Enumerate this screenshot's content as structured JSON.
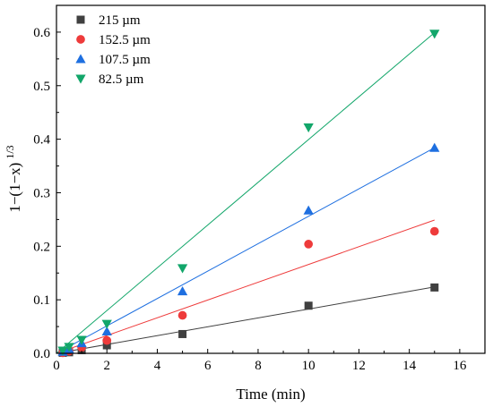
{
  "chart_data": {
    "type": "scatter",
    "title": "",
    "xlabel": "Time (min)",
    "ylabel": "1−(1−x)",
    "ylabel_sup": "1/3",
    "xlim": [
      0,
      17
    ],
    "ylim": [
      0,
      0.65
    ],
    "xticks": [
      0,
      2,
      4,
      6,
      8,
      10,
      12,
      14,
      16
    ],
    "yticks": [
      0.0,
      0.1,
      0.2,
      0.3,
      0.4,
      0.5,
      0.6
    ],
    "grid": false,
    "legend_position": "top-left",
    "series": [
      {
        "name": "215 µm",
        "marker": "square",
        "color": "#404040",
        "x": [
          0.25,
          0.5,
          1,
          2,
          5,
          10,
          15
        ],
        "y": [
          0.001,
          0.002,
          0.006,
          0.015,
          0.036,
          0.089,
          0.123
        ],
        "fit": [
          [
            0,
            0
          ],
          [
            15,
            0.124
          ]
        ]
      },
      {
        "name": "152.5 µm",
        "marker": "circle",
        "color": "#ee3b3b",
        "x": [
          0.25,
          0.5,
          1,
          2,
          5,
          10,
          15
        ],
        "y": [
          0.001,
          0.004,
          0.011,
          0.024,
          0.071,
          0.204,
          0.228
        ],
        "fit": [
          [
            0,
            0
          ],
          [
            15,
            0.249
          ]
        ]
      },
      {
        "name": "107.5 µm",
        "marker": "triangle-up",
        "color": "#1e6fe0",
        "x": [
          0.25,
          0.5,
          1,
          2,
          5,
          10,
          15
        ],
        "y": [
          0.003,
          0.008,
          0.019,
          0.041,
          0.116,
          0.267,
          0.384
        ],
        "fit": [
          [
            0,
            0
          ],
          [
            15,
            0.384
          ]
        ]
      },
      {
        "name": "82.5 µm",
        "marker": "triangle-down",
        "color": "#12a66a",
        "x": [
          0.25,
          0.5,
          1,
          2,
          5,
          10,
          15
        ],
        "y": [
          0.005,
          0.012,
          0.025,
          0.055,
          0.159,
          0.422,
          0.597
        ],
        "fit": [
          [
            0,
            0
          ],
          [
            15,
            0.599
          ]
        ]
      }
    ]
  }
}
